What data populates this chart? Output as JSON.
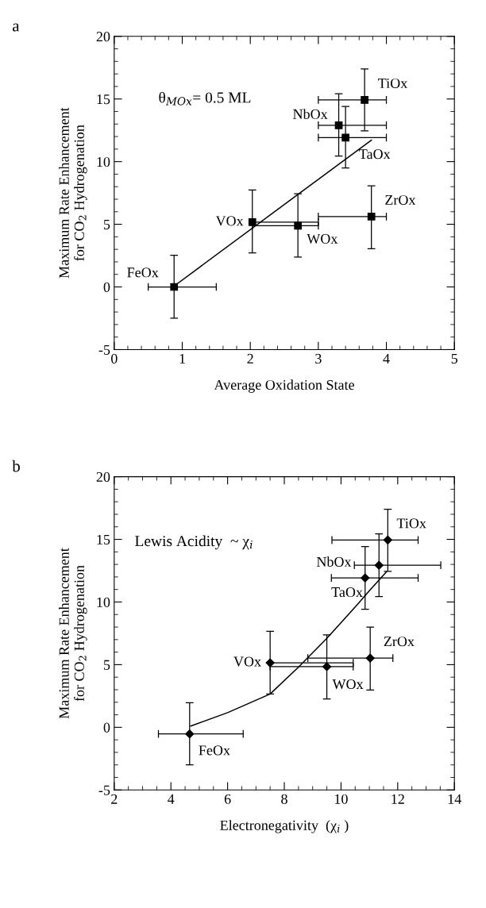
{
  "chart_data": [
    {
      "type": "scatter",
      "title": "a",
      "xlabel": "Average Oxidation State",
      "ylabel": "Maximum Rate Enhancement\nfor CO$_{2}$ Hydrogenation",
      "xlim": [
        0,
        5
      ],
      "ylim": [
        -5,
        20
      ],
      "xticks": [
        0,
        1,
        2,
        3,
        4,
        5
      ],
      "yticks": [
        -5,
        0,
        5,
        10,
        15,
        20
      ],
      "grid": false,
      "series": [
        {
          "color": "#000000",
          "marker": "square",
          "x": [
            0.88,
            2.03,
            2.7,
            3.78,
            3.3,
            3.4,
            3.68
          ],
          "values": [
            0,
            5.17,
            4.89,
            5.61,
            12.9,
            11.91,
            14.92
          ],
          "errors": [
            [
              -2.5,
              2.52
            ],
            [
              2.71,
              7.73
            ],
            [
              2.39,
              7.44
            ],
            [
              3.05,
              8.07
            ],
            [
              10.44,
              15.42
            ],
            [
              9.49,
              14.41
            ],
            [
              12.46,
              17.4
            ]
          ],
          "xerrors": [
            [
              0.5,
              1.5
            ],
            [
              2.03,
              3.0
            ],
            [
              2.03,
              3.0
            ],
            [
              3.0,
              4.0
            ],
            [
              3.0,
              4.0
            ],
            [
              3.0,
              4.0
            ],
            [
              3.0,
              4.0
            ]
          ]
        },
        {
          "type": "line",
          "color": "#000000",
          "marker": "none",
          "line_style": "solid",
          "x": [
            0.93,
            3.78
          ],
          "values": [
            0.27,
            11.72
          ]
        }
      ],
      "annotations": [
        {
          "text": "FeOx",
          "x": 0.88,
          "y": 0
        },
        {
          "text": "VOx",
          "x": 2.03,
          "y": 5.17
        },
        {
          "text": "WOx",
          "x": 2.7,
          "y": 4.89
        },
        {
          "text": "ZrOx",
          "x": 3.78,
          "y": 5.61
        },
        {
          "text": "NbOx",
          "x": 3.3,
          "y": 12.9
        },
        {
          "text": "TaOx",
          "x": 3.4,
          "y": 11.91
        },
        {
          "text": "TiOx",
          "x": 3.68,
          "y": 14.92
        },
        "θ$_{MOx}$= 0.5 ML"
      ]
    },
    {
      "type": "scatter",
      "title": "b",
      "xlabel": "Electronegativity  (χ$_{i}$ )",
      "ylabel": "Maximum Rate Enhancement\nfor CO$_{2}$ Hydrogenation",
      "xlim": [
        2,
        14
      ],
      "ylim": [
        -5,
        20
      ],
      "xticks": [
        2,
        4,
        6,
        8,
        10,
        12,
        14
      ],
      "yticks": [
        -5,
        0,
        5,
        10,
        15,
        20
      ],
      "grid": false,
      "series": [
        {
          "color": "#000000",
          "marker": "diamond",
          "x": [
            4.66,
            7.5,
            9.5,
            11.03,
            10.85,
            11.34,
            11.65
          ],
          "values": [
            -0.53,
            5.15,
            4.84,
            5.52,
            11.92,
            12.93,
            14.95
          ],
          "errors": [
            [
              -2.99,
              1.96
            ],
            [
              2.66,
              7.66
            ],
            [
              2.27,
              7.37
            ],
            [
              2.97,
              8.0
            ],
            [
              9.42,
              14.43
            ],
            [
              10.43,
              15.43
            ],
            [
              12.45,
              17.4
            ]
          ],
          "xerrors": [
            [
              3.56,
              6.55
            ],
            [
              7.5,
              10.43
            ],
            [
              7.5,
              10.43
            ],
            [
              8.83,
              11.83
            ],
            [
              9.66,
              12.72
            ],
            [
              10.47,
              13.52
            ],
            [
              9.68,
              12.72
            ]
          ]
        },
        {
          "type": "line",
          "color": "#000000",
          "marker": "none",
          "line_style": "solid",
          "x": [
            4.7,
            6.0,
            7.5,
            8.5,
            9.5,
            10.5,
            11.0,
            11.6
          ],
          "values": [
            0.1,
            1.17,
            2.66,
            4.8,
            7.1,
            9.6,
            10.9,
            12.4
          ]
        }
      ],
      "annotations": [
        {
          "text": "FeOx",
          "x": 4.66,
          "y": -0.53
        },
        {
          "text": "VOx",
          "x": 7.5,
          "y": 5.15
        },
        {
          "text": "WOx",
          "x": 9.5,
          "y": 4.84
        },
        {
          "text": "ZrOx",
          "x": 11.03,
          "y": 5.52
        },
        {
          "text": "TaOx",
          "x": 10.85,
          "y": 11.92
        },
        {
          "text": "NbOx",
          "x": 11.34,
          "y": 12.93
        },
        {
          "text": "TiOx",
          "x": 11.65,
          "y": 14.95
        },
        "Lewis Acidity  ~ χ$_{i}$"
      ]
    }
  ]
}
